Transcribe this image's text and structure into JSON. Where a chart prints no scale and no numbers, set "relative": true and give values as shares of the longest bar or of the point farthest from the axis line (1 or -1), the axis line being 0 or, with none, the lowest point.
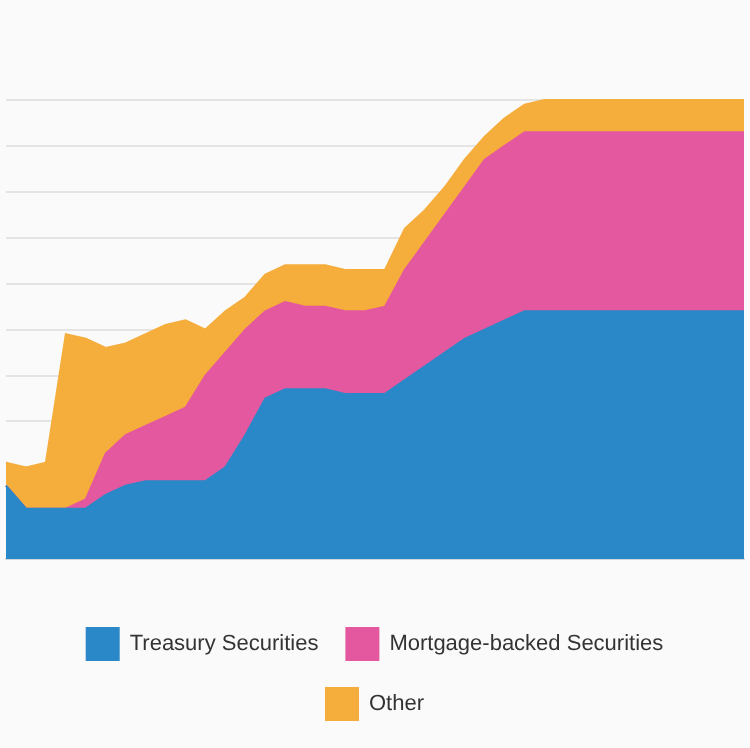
{
  "chart_data": {
    "type": "area",
    "stacked": true,
    "relative": true,
    "grid": "y",
    "legend": "bottom",
    "marker": "none",
    "categories": [
      null,
      null,
      null,
      null,
      null,
      null,
      null,
      null,
      null,
      null,
      null,
      null,
      null,
      null,
      null,
      null,
      null,
      null,
      null,
      null,
      null,
      null,
      null,
      null,
      null,
      null,
      null,
      null,
      null,
      null,
      null,
      null,
      null,
      null,
      null,
      null,
      null,
      null
    ],
    "series": [
      {
        "name": "Treasury Securities",
        "color": "#2a88c8",
        "values": [
          0.16,
          0.11,
          0.11,
          0.11,
          0.11,
          0.14,
          0.16,
          0.17,
          0.17,
          0.17,
          0.17,
          0.2,
          0.27,
          0.35,
          0.37,
          0.37,
          0.37,
          0.36,
          0.36,
          0.36,
          0.39,
          0.42,
          0.45,
          0.48,
          0.5,
          0.52,
          0.54,
          0.54,
          0.54,
          0.54,
          0.54,
          0.54,
          0.54,
          0.54,
          0.54,
          0.54,
          0.54,
          0.54
        ]
      },
      {
        "name": "Mortgage-backed Securities",
        "color": "#e3589e",
        "values": [
          0,
          0,
          0,
          0,
          0.02,
          0.09,
          0.11,
          0.12,
          0.14,
          0.16,
          0.23,
          0.25,
          0.23,
          0.19,
          0.19,
          0.18,
          0.18,
          0.18,
          0.18,
          0.19,
          0.24,
          0.27,
          0.3,
          0.33,
          0.37,
          0.38,
          0.39,
          0.39,
          0.39,
          0.39,
          0.39,
          0.39,
          0.39,
          0.39,
          0.39,
          0.39,
          0.39,
          0.39
        ]
      },
      {
        "name": "Other",
        "color": "#f5ad3c",
        "values": [
          0.05,
          0.09,
          0.1,
          0.38,
          0.35,
          0.23,
          0.2,
          0.2,
          0.2,
          0.19,
          0.1,
          0.09,
          0.07,
          0.08,
          0.08,
          0.09,
          0.09,
          0.09,
          0.09,
          0.08,
          0.09,
          0.07,
          0.06,
          0.06,
          0.05,
          0.06,
          0.06,
          0.07,
          0.07,
          0.07,
          0.07,
          0.07,
          0.07,
          0.07,
          0.07,
          0.07,
          0.07,
          0.07
        ]
      }
    ]
  }
}
